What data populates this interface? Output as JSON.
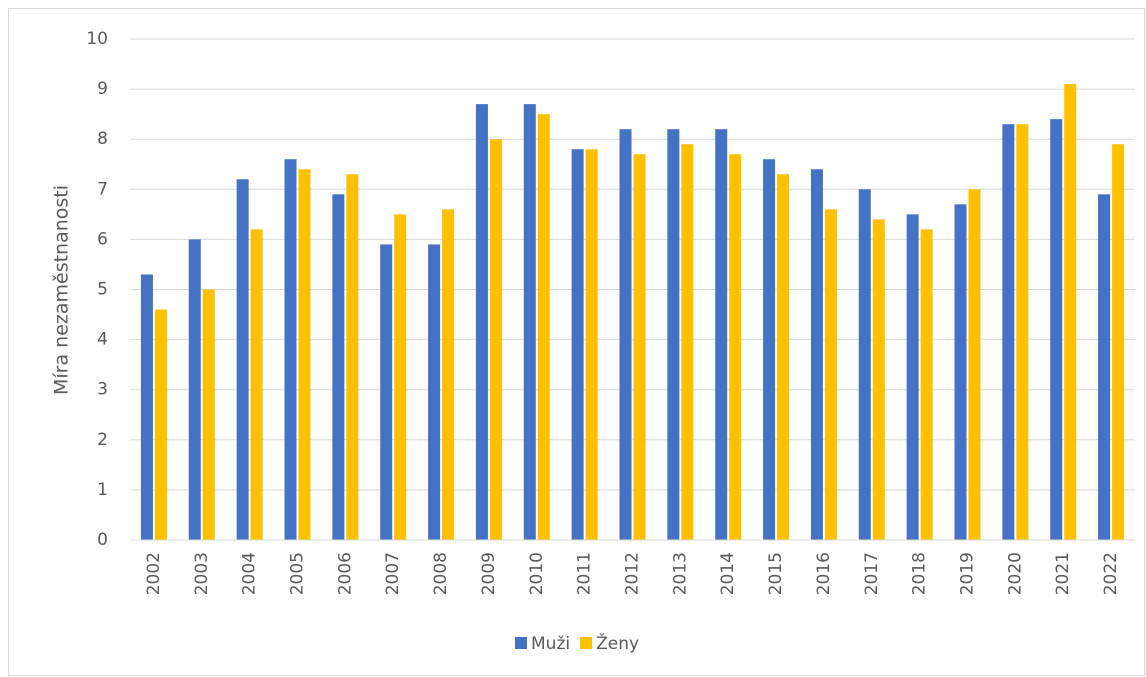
{
  "chart_data": {
    "type": "bar",
    "y_label": "Míra nezaměstnanosti",
    "categories": [
      "2002",
      "2003",
      "2004",
      "2005",
      "2006",
      "2007",
      "2008",
      "2009",
      "2010",
      "2011",
      "2012",
      "2013",
      "2014",
      "2015",
      "2016",
      "2017",
      "2018",
      "2019",
      "2020",
      "2021",
      "2022"
    ],
    "series": [
      {
        "name": "Muži",
        "color": "#4472c4",
        "values": [
          5.3,
          6.0,
          7.2,
          7.6,
          6.9,
          5.9,
          5.9,
          8.7,
          8.7,
          7.8,
          8.2,
          8.2,
          8.2,
          7.6,
          7.4,
          7.0,
          6.5,
          6.7,
          8.3,
          8.4,
          6.9
        ]
      },
      {
        "name": "Ženy",
        "color": "#ffc000",
        "values": [
          4.6,
          5.0,
          6.2,
          7.4,
          7.3,
          6.5,
          6.6,
          8.0,
          8.5,
          7.8,
          7.7,
          7.9,
          7.7,
          7.3,
          6.6,
          6.4,
          6.2,
          7.0,
          8.3,
          9.1,
          7.9
        ]
      }
    ],
    "ylim": [
      0,
      10
    ],
    "yticks": [
      0,
      1,
      2,
      3,
      4,
      5,
      6,
      7,
      8,
      9,
      10
    ],
    "grid": true,
    "legend": "bottom"
  }
}
